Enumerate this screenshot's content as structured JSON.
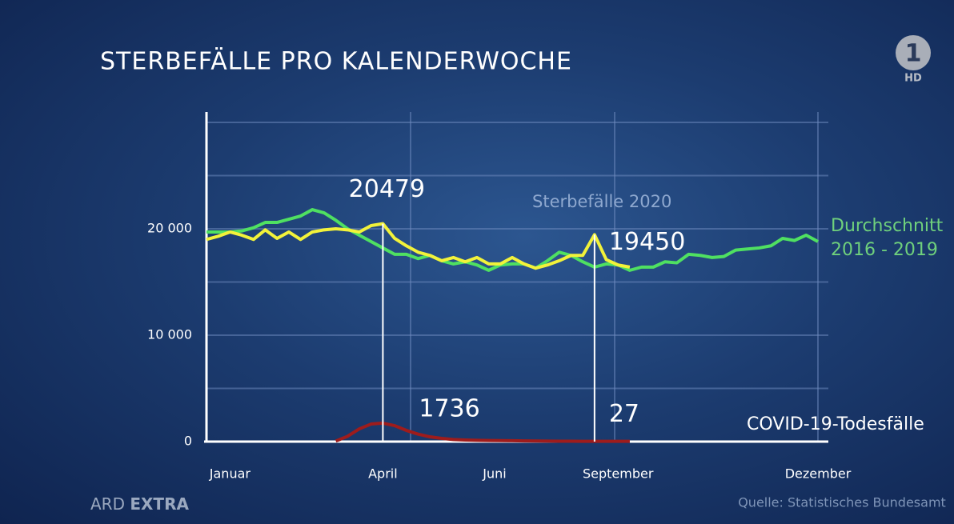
{
  "chart_data": {
    "type": "line",
    "title": "STERBEFÄLLE PRO KALENDERWOCHE",
    "source": "Quelle: Statistisches Bundesamt",
    "x": [
      1,
      2,
      3,
      4,
      5,
      6,
      7,
      8,
      9,
      10,
      11,
      12,
      13,
      14,
      15,
      16,
      17,
      18,
      19,
      20,
      21,
      22,
      23,
      24,
      25,
      26,
      27,
      28,
      29,
      30,
      31,
      32,
      33,
      34,
      35,
      36,
      37,
      38,
      39,
      40,
      41,
      42,
      43,
      44,
      45,
      46,
      47,
      48,
      49,
      50,
      51,
      52,
      53
    ],
    "xlim": [
      1,
      53
    ],
    "xticks": [
      {
        "value": 3,
        "label": "Januar"
      },
      {
        "value": 16,
        "label": "April"
      },
      {
        "value": 25.5,
        "label": "Juni"
      },
      {
        "value": 36,
        "label": "September"
      },
      {
        "value": 53,
        "label": "Dezember"
      }
    ],
    "ylim": [
      0,
      30000
    ],
    "yticks": [
      0,
      {
        "value": 5000,
        "label": null
      },
      {
        "value": 10000,
        "label": "10 000"
      },
      {
        "value": 15000,
        "label": null
      },
      {
        "value": 20000,
        "label": "20 000"
      },
      {
        "value": 25000,
        "label": null
      },
      {
        "value": 30000,
        "label": null
      }
    ],
    "grid": true,
    "series": [
      {
        "name": "Durchschnitt 2016 - 2019",
        "color": "#4fe061",
        "values": [
          19700,
          19700,
          19700,
          19800,
          20100,
          20600,
          20600,
          20900,
          21200,
          21800,
          21500,
          20800,
          20000,
          19400,
          18800,
          18200,
          17600,
          17600,
          17200,
          17500,
          17000,
          16700,
          16900,
          16600,
          16100,
          16600,
          16700,
          16700,
          16300,
          17000,
          17800,
          17500,
          16900,
          16400,
          16700,
          16600,
          16100,
          16400,
          16400,
          16900,
          16800,
          17600,
          17500,
          17300,
          17400,
          18000,
          18100,
          18200,
          18400,
          19100,
          18900,
          19400,
          18800
        ]
      },
      {
        "name": "Sterbefälle 2020",
        "color": "#f2f23a",
        "values": [
          19000,
          19300,
          19700,
          19400,
          19000,
          19900,
          19100,
          19700,
          19000,
          19700,
          19900,
          20000,
          19900,
          19700,
          20300,
          20479,
          19100,
          18400,
          17800,
          17500,
          17000,
          17300,
          16900,
          17300,
          16700,
          16700,
          17300,
          16700,
          16300,
          16600,
          17000,
          17500,
          17500,
          19450,
          17100,
          16600,
          16400,
          null,
          null,
          null,
          null,
          null,
          null,
          null,
          null,
          null,
          null,
          null,
          null,
          null,
          null,
          null,
          null
        ]
      },
      {
        "name": "COVID-19-Todesfälle",
        "color": "#9e1c1c",
        "values": [
          null,
          null,
          null,
          null,
          null,
          null,
          null,
          null,
          null,
          null,
          null,
          50,
          500,
          1200,
          1650,
          1736,
          1500,
          1050,
          700,
          450,
          300,
          200,
          150,
          120,
          100,
          90,
          80,
          70,
          60,
          50,
          40,
          35,
          30,
          27,
          27,
          27,
          27,
          null,
          null,
          null,
          null,
          null,
          null,
          null,
          null,
          null,
          null,
          null,
          null,
          null,
          null,
          null,
          null
        ]
      }
    ]
  },
  "branding": {
    "show": "ARD",
    "show_bold": "EXTRA",
    "logo": "1",
    "logo_sub": "HD"
  }
}
